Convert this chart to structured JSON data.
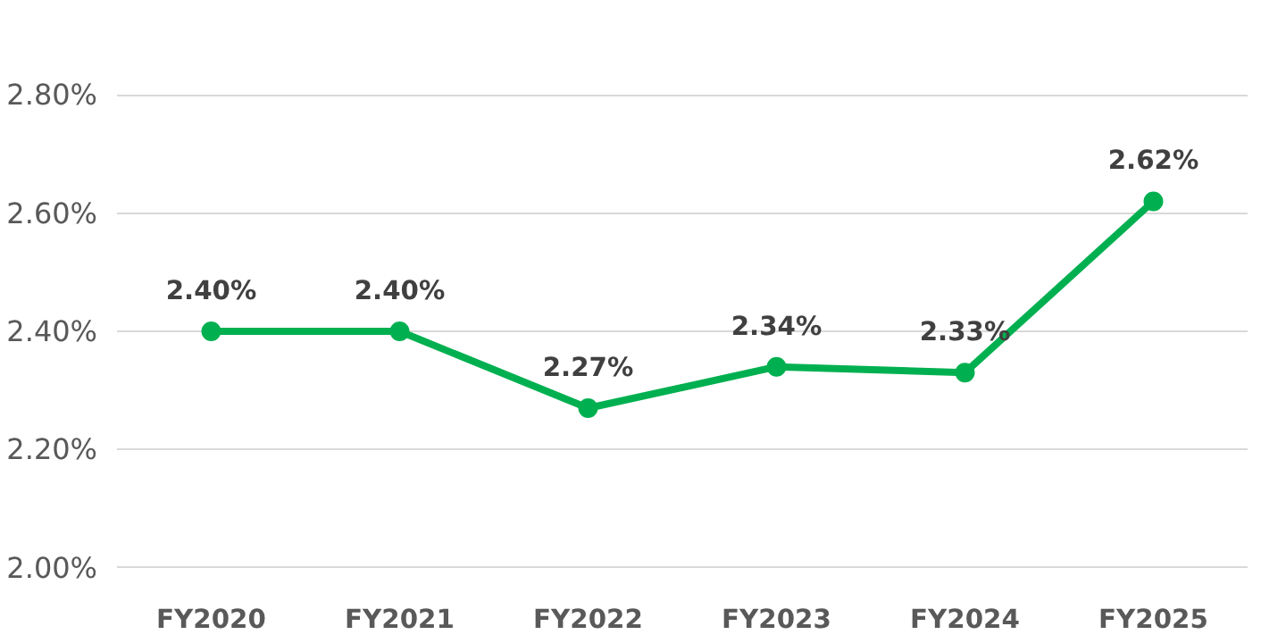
{
  "chart_data": {
    "type": "line",
    "categories": [
      "FY2020",
      "FY2021",
      "FY2022",
      "FY2023",
      "FY2024",
      "FY2025"
    ],
    "series": [
      {
        "color": "#00b050",
        "values": [
          2.4,
          2.4,
          2.27,
          2.34,
          2.33,
          2.62
        ],
        "value_labels": [
          "2.40%",
          "2.40%",
          "2.27%",
          "2.34%",
          "2.33%",
          "2.62%"
        ]
      }
    ],
    "ylim": [
      2.0,
      2.8
    ],
    "yticks": [
      {
        "value": 2.0,
        "label": "2.00%"
      },
      {
        "value": 2.2,
        "label": "2.20%"
      },
      {
        "value": 2.4,
        "label": "2.40%"
      },
      {
        "value": 2.6,
        "label": "2.60%"
      },
      {
        "value": 2.8,
        "label": "2.80%"
      }
    ],
    "grid": "y",
    "marker": "circle",
    "line_style": "solid"
  }
}
